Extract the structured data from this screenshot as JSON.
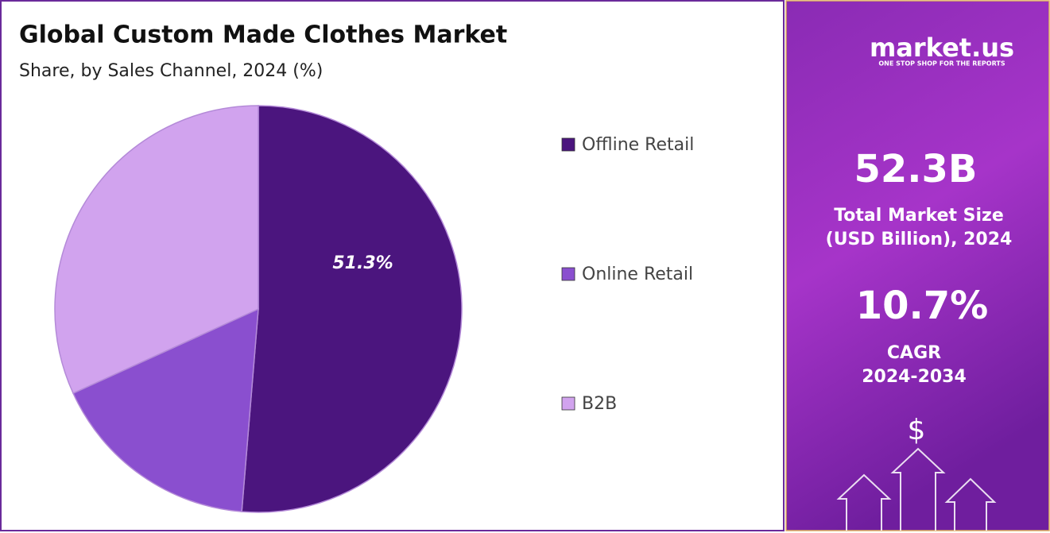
{
  "chart_data": {
    "type": "pie",
    "title": "Global Custom Made Clothes Market",
    "subtitle": "Share, by Sales Channel, 2024 (%)",
    "categories": [
      "Offline Retail",
      "Online Retail",
      "B2B"
    ],
    "values": [
      51.3,
      16.9,
      31.8
    ],
    "value_labels": [
      "51.3%",
      null,
      null
    ],
    "colors": [
      "#4b157e",
      "#8a4fcf",
      "#d1a3ee"
    ],
    "legend": "right"
  },
  "side_panel": {
    "brand": "market.us",
    "tagline": "ONE STOP SHOP FOR THE REPORTS",
    "market_size": "52.3B",
    "market_size_label": [
      "Total Market Size",
      "(USD Billion), 2024"
    ],
    "cagr": "10.7%",
    "cagr_label": [
      "CAGR",
      "2024-2034"
    ],
    "icon": "$"
  }
}
